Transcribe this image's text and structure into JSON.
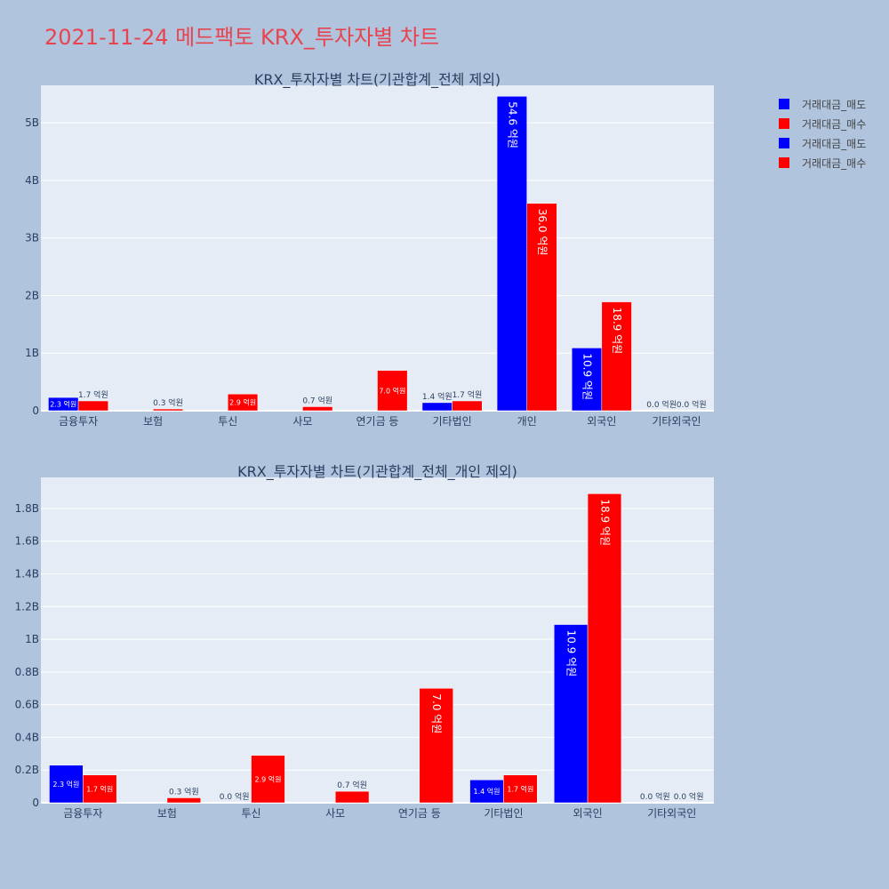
{
  "page_title": "2021-11-24 메드팩토 KRX_투자자별 차트",
  "colors": {
    "sell": "#0000ff",
    "buy": "#ff0000",
    "plot_bg": "#e5ecf6",
    "page_bg": "#b0c4de"
  },
  "legend": [
    {
      "label": "거래대금_매도",
      "color": "#0000ff"
    },
    {
      "label": "거래대금_매수",
      "color": "#ff0000"
    },
    {
      "label": "거래대금_매도",
      "color": "#0000ff"
    },
    {
      "label": "거래대금_매수",
      "color": "#ff0000"
    }
  ],
  "chart_data": [
    {
      "type": "bar",
      "title": "KRX_투자자별 차트(기관합계_전체 제외)",
      "categories": [
        "금융투자",
        "보험",
        "투신",
        "사모",
        "연기금 등",
        "기타법인",
        "개인",
        "외국인",
        "기타외국인"
      ],
      "ylim": [
        0,
        5.65
      ],
      "yticks": [
        0,
        1,
        2,
        3,
        4,
        5
      ],
      "ytick_labels": [
        "0",
        "1B",
        "2B",
        "3B",
        "4B",
        "5B"
      ],
      "grid": true,
      "series": [
        {
          "name": "거래대금_매도",
          "color": "#0000ff",
          "values": [
            0.23,
            null,
            null,
            null,
            null,
            0.14,
            5.46,
            1.09,
            0.0
          ],
          "labels": [
            "2.3 억원",
            "",
            "",
            "",
            "",
            "1.4 억원",
            "54.6 억원",
            "10.9 억원",
            "0.0 억원"
          ]
        },
        {
          "name": "거래대금_매수",
          "color": "#ff0000",
          "values": [
            0.17,
            0.03,
            0.29,
            0.07,
            0.7,
            0.17,
            3.6,
            1.89,
            0.0
          ],
          "labels": [
            "1.7 억원",
            "0.3 억원",
            "2.9 억원",
            "0.7 억원",
            "7.0 억원",
            "1.7 억원",
            "36.0 억원",
            "18.9 억원",
            "0.0 억원"
          ]
        }
      ]
    },
    {
      "type": "bar",
      "title": "KRX_투자자별 차트(기관합계_전체_개인 제외)",
      "categories": [
        "금융투자",
        "보험",
        "투신",
        "사모",
        "연기금 등",
        "기타법인",
        "외국인",
        "기타외국인"
      ],
      "ylim": [
        0,
        1.99
      ],
      "yticks": [
        0,
        0.2,
        0.4,
        0.6,
        0.8,
        1.0,
        1.2,
        1.4,
        1.6,
        1.8
      ],
      "ytick_labels": [
        "0",
        "0.2B",
        "0.4B",
        "0.6B",
        "0.8B",
        "1B",
        "1.2B",
        "1.4B",
        "1.6B",
        "1.8B"
      ],
      "grid": true,
      "series": [
        {
          "name": "거래대금_매도",
          "color": "#0000ff",
          "values": [
            0.23,
            null,
            0.0,
            null,
            null,
            0.14,
            1.09,
            0.0
          ],
          "labels": [
            "2.3 억원",
            "",
            "0.0 억원",
            "",
            "",
            "1.4 억원",
            "10.9 억원",
            "0.0 억원"
          ]
        },
        {
          "name": "거래대금_매수",
          "color": "#ff0000",
          "values": [
            0.17,
            0.03,
            0.29,
            0.07,
            0.7,
            0.17,
            1.89,
            0.0
          ],
          "labels": [
            "1.7 억원",
            "0.3 억원",
            "2.9 억원",
            "0.7 억원",
            "7.0 억원",
            "1.7 억원",
            "18.9 억원",
            "0.0 억원"
          ]
        }
      ]
    }
  ]
}
